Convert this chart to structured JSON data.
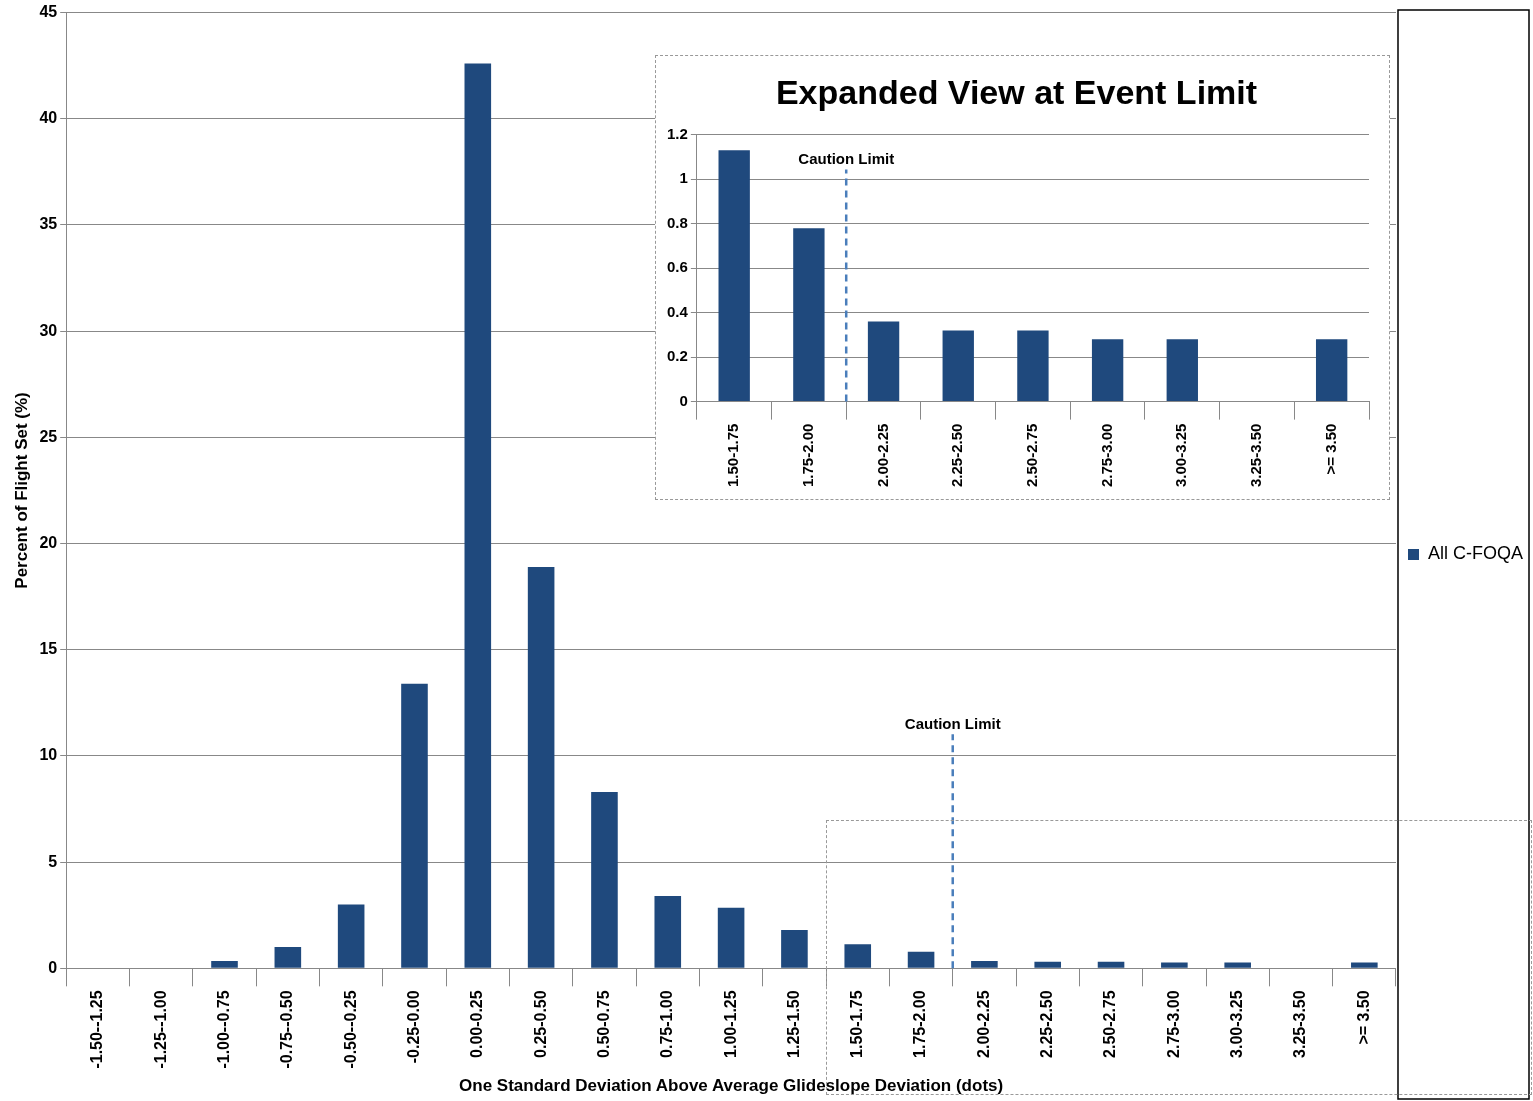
{
  "chart_data": [
    {
      "type": "bar",
      "xlabel": "One Standard Deviation Above Average Glideslope Deviation (dots)",
      "ylabel": "Percent of Flight Set (%)",
      "categories": [
        "-1.50--1.25",
        "-1.25--1.00",
        "-1.00--0.75",
        "-0.75--0.50",
        "-0.50--0.25",
        "-0.25-0.00",
        "0.00-0.25",
        "0.25-0.50",
        "0.50-0.75",
        "0.75-1.00",
        "1.00-1.25",
        "1.25-1.50",
        "1.50-1.75",
        "1.75-2.00",
        "2.00-2.25",
        "2.25-2.50",
        "2.50-2.75",
        "2.75-3.00",
        "3.00-3.25",
        "3.25-3.50",
        ">= 3.50"
      ],
      "series": [
        {
          "name": "All C-FOQA",
          "color": "#1f497d",
          "values": [
            0,
            0,
            0.35,
            1.0,
            3.0,
            13.4,
            42.6,
            18.9,
            8.3,
            3.4,
            2.85,
            1.8,
            1.13,
            0.78,
            0.35,
            0.31,
            0.31,
            0.27,
            0.27,
            0,
            0.27
          ]
        }
      ],
      "ylim": [
        0,
        45
      ],
      "yticks": [
        0,
        5,
        10,
        15,
        20,
        25,
        30,
        35,
        40,
        45
      ],
      "grid": "y",
      "legend": "right",
      "ref_lines": [
        {
          "axis": "x",
          "value": "2.00-2.25",
          "label": "Caution Limit",
          "color": "#4a7ebb",
          "line_style": "dashed"
        }
      ]
    },
    {
      "type": "bar",
      "title": "Expanded View at Event Limit",
      "categories": [
        "1.50-1.75",
        "1.75-2.00",
        "2.00-2.25",
        "2.25-2.50",
        "2.50-2.75",
        "2.75-3.00",
        "3.00-3.25",
        "3.25-3.50",
        ">= 3.50"
      ],
      "values": [
        1.13,
        0.78,
        0.36,
        0.32,
        0.32,
        0.28,
        0.28,
        0,
        0.28
      ],
      "color": "#1f497d",
      "ylim": [
        0,
        1.2
      ],
      "yticks": [
        0,
        0.2,
        0.4,
        0.6,
        0.8,
        1,
        1.2
      ],
      "grid": "y",
      "ref_lines": [
        {
          "axis": "x",
          "value": "2.00-2.25",
          "label": "Caution Limit",
          "color": "#4a7ebb",
          "line_style": "dashed"
        }
      ]
    }
  ]
}
